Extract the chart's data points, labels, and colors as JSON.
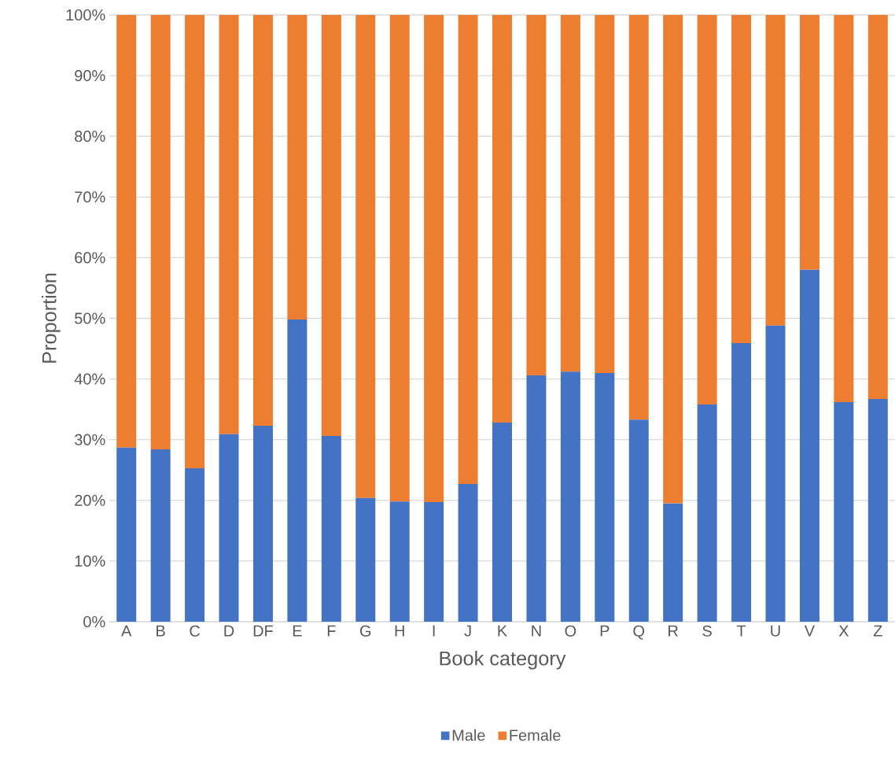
{
  "chart_data": {
    "type": "bar",
    "stacked": true,
    "xlabel": "Book category",
    "ylabel": "Proportion",
    "categories": [
      "A",
      "B",
      "C",
      "D",
      "DF",
      "E",
      "F",
      "G",
      "H",
      "I",
      "J",
      "K",
      "N",
      "O",
      "P",
      "Q",
      "R",
      "S",
      "T",
      "U",
      "V",
      "X",
      "Z"
    ],
    "series": [
      {
        "name": "Male",
        "color": "#4472c4",
        "values": [
          28.7,
          28.4,
          25.3,
          30.9,
          32.3,
          49.8,
          30.6,
          20.4,
          19.8,
          19.7,
          22.7,
          32.8,
          40.6,
          41.2,
          41.0,
          33.3,
          19.5,
          35.8,
          45.9,
          48.8,
          58.0,
          36.2,
          36.7
        ]
      },
      {
        "name": "Female",
        "color": "#ed7d31",
        "values": [
          71.3,
          71.6,
          74.7,
          69.1,
          67.7,
          50.2,
          69.4,
          79.6,
          80.2,
          80.3,
          77.3,
          67.2,
          59.4,
          58.8,
          59.0,
          66.7,
          80.5,
          64.2,
          54.1,
          51.2,
          42.0,
          63.8,
          63.3
        ]
      }
    ],
    "ylim": [
      0,
      100
    ],
    "yticks": [
      {
        "value": 0,
        "label": "0%"
      },
      {
        "value": 10,
        "label": "10%"
      },
      {
        "value": 20,
        "label": "20%"
      },
      {
        "value": 30,
        "label": "30%"
      },
      {
        "value": 40,
        "label": "40%"
      },
      {
        "value": 50,
        "label": "50%"
      },
      {
        "value": 60,
        "label": "60%"
      },
      {
        "value": 70,
        "label": "70%"
      },
      {
        "value": 80,
        "label": "80%"
      },
      {
        "value": 90,
        "label": "90%"
      },
      {
        "value": 100,
        "label": "100%"
      }
    ],
    "grid": "y",
    "legend": "bottom"
  }
}
